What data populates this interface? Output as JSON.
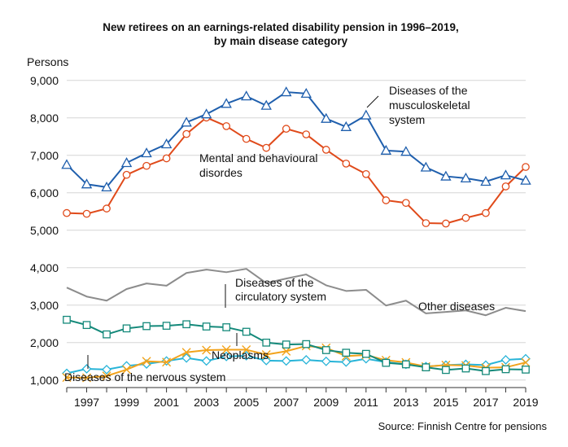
{
  "chart_data": {
    "type": "line",
    "title_line1": "New retirees on an earnings-related disability pension in 1996–2019,",
    "title_line2": "by main disease category",
    "ylabel": "Persons",
    "source": "Source: Finnish Centre for pensions",
    "ylim": [
      800,
      9300
    ],
    "y_ticks": [
      1000,
      2000,
      3000,
      4000,
      5000,
      6000,
      7000,
      8000,
      9000
    ],
    "y_tick_labels": [
      "1,000",
      "2,000",
      "3,000",
      "4,000",
      "5,000",
      "6,000",
      "7,000",
      "8,000",
      "9,000"
    ],
    "x": [
      1996,
      1997,
      1998,
      1999,
      2000,
      2001,
      2002,
      2003,
      2004,
      2005,
      2006,
      2007,
      2008,
      2009,
      2010,
      2011,
      2012,
      2013,
      2014,
      2015,
      2016,
      2017,
      2018,
      2019
    ],
    "x_tick_labels": [
      "1997",
      "1999",
      "2001",
      "2003",
      "2005",
      "2007",
      "2009",
      "2011",
      "2013",
      "2015",
      "2017",
      "2019"
    ],
    "grid": "horizontal",
    "series": [
      {
        "name": "Diseases of the musculoskeletal system",
        "label_lines": [
          "Diseases of the",
          "musculoskeletal",
          "system"
        ],
        "color": "#1f5fad",
        "marker": "triangle",
        "values": [
          6750,
          6230,
          6150,
          6800,
          7060,
          7300,
          7880,
          8100,
          8380,
          8580,
          8330,
          8690,
          8650,
          7980,
          7760,
          8070,
          7130,
          7100,
          6680,
          6440,
          6390,
          6300,
          6470,
          6330
        ]
      },
      {
        "name": "Mental and behavioural disordes",
        "label_lines": [
          "Mental and behavioural",
          "disordes"
        ],
        "color": "#e04a1a",
        "marker": "circle",
        "values": [
          5460,
          5440,
          5580,
          6480,
          6720,
          6920,
          7570,
          8010,
          7780,
          7440,
          7200,
          7710,
          7560,
          7150,
          6780,
          6500,
          5800,
          5730,
          5190,
          5180,
          5330,
          5460,
          6170,
          6690
        ]
      },
      {
        "name": "Other diseases",
        "label_lines": [
          "Other diseases"
        ],
        "color": "#8c8c8c",
        "marker": "none",
        "values": [
          3470,
          3230,
          3120,
          3430,
          3580,
          3520,
          3860,
          3950,
          3880,
          3970,
          3590,
          3710,
          3820,
          3530,
          3380,
          3410,
          2990,
          3120,
          2780,
          2820,
          2860,
          2730,
          2930,
          2840
        ]
      },
      {
        "name": "Diseases of the circulatory system",
        "label_lines": [
          "Diseases of the",
          "circulatory system"
        ],
        "color": "#14897a",
        "marker": "square",
        "values": [
          2610,
          2470,
          2220,
          2380,
          2440,
          2450,
          2490,
          2430,
          2410,
          2290,
          2000,
          1950,
          1960,
          1800,
          1730,
          1700,
          1460,
          1420,
          1340,
          1270,
          1310,
          1240,
          1290,
          1280
        ]
      },
      {
        "name": "Neoplasms",
        "label_lines": [
          "Neoplasms"
        ],
        "color": "#28b4d8",
        "marker": "diamond",
        "values": [
          1180,
          1300,
          1280,
          1380,
          1430,
          1510,
          1590,
          1510,
          1630,
          1650,
          1520,
          1510,
          1540,
          1500,
          1480,
          1570,
          1480,
          1420,
          1360,
          1400,
          1420,
          1400,
          1540,
          1570
        ]
      },
      {
        "name": "Diseases of the nervous system",
        "label_lines": [
          "Diseases of the nervous system"
        ],
        "color": "#f2a31c",
        "marker": "x",
        "values": [
          1070,
          1060,
          1110,
          1280,
          1500,
          1480,
          1740,
          1800,
          1810,
          1810,
          1680,
          1770,
          1910,
          1860,
          1640,
          1670,
          1530,
          1470,
          1360,
          1400,
          1390,
          1330,
          1340,
          1470
        ]
      }
    ]
  }
}
